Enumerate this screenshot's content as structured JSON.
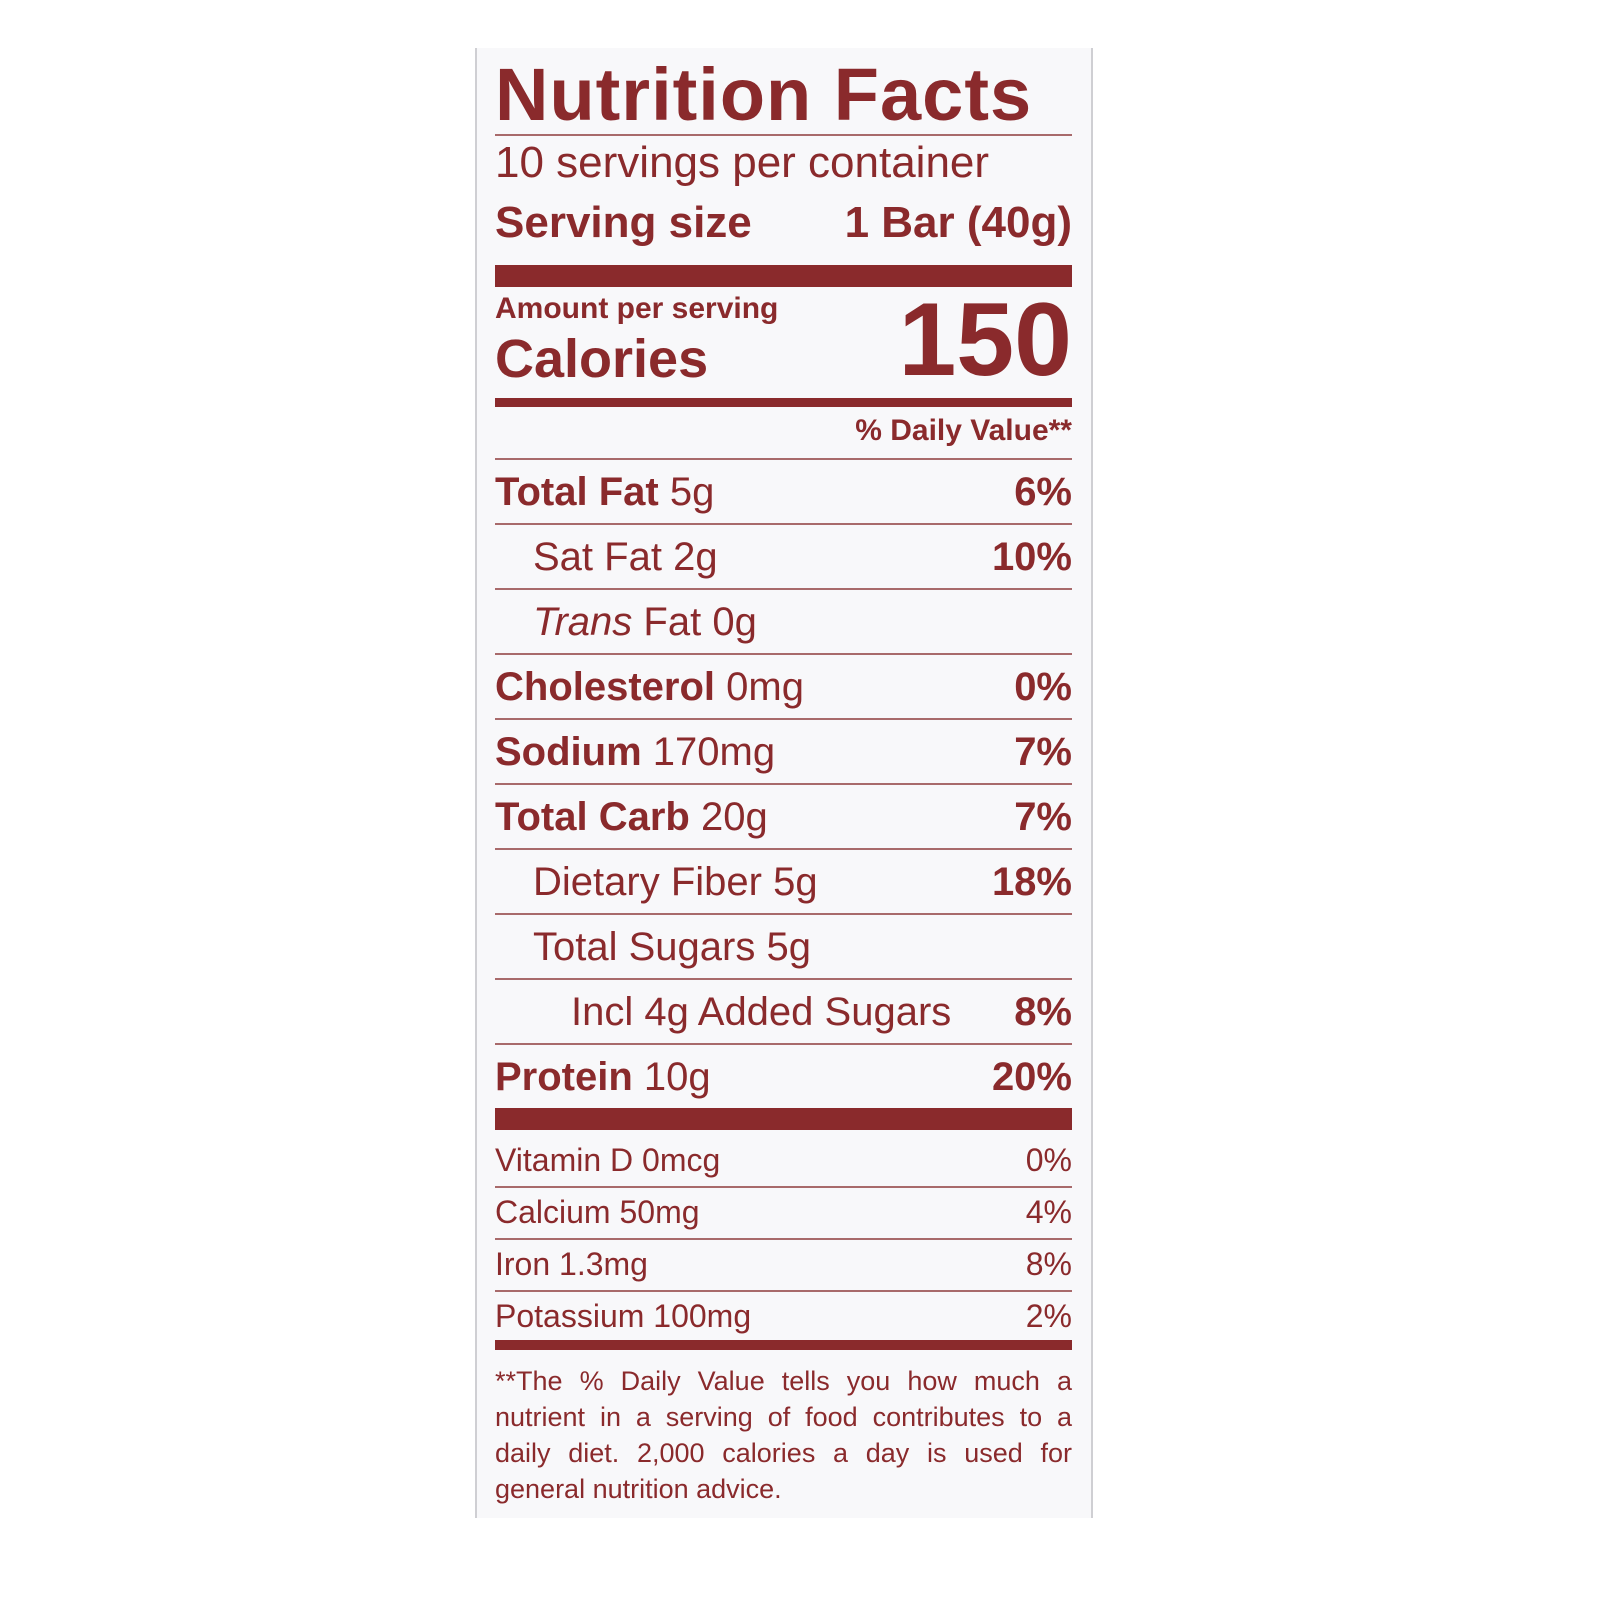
{
  "title": "Nutrition Facts",
  "servings": "10 servings per container",
  "serving_size": {
    "label": "Serving size",
    "value": "1 Bar (40g)"
  },
  "calories": {
    "amount_label": "Amount per serving",
    "label": "Calories",
    "value": "150"
  },
  "dv_header": "% Daily Value**",
  "nutrients": [
    {
      "name": "Total Fat",
      "amount": "5g",
      "dv": "6%"
    },
    {
      "name": "Sat Fat",
      "amount": "2g",
      "dv": "10%"
    },
    {
      "italic": "Trans",
      "name": "Fat",
      "amount": "0g"
    },
    {
      "name": "Cholesterol",
      "amount": "0mg",
      "dv": "0%"
    },
    {
      "name": "Sodium",
      "amount": "170mg",
      "dv": "7%"
    },
    {
      "name": "Total Carb",
      "amount": "20g",
      "dv": "7%"
    },
    {
      "name": "Dietary Fiber",
      "amount": "5g",
      "dv": "18%"
    },
    {
      "name": "Total Sugars",
      "amount": "5g"
    },
    {
      "name": "Incl 4g Added Sugars",
      "dv": "8%"
    },
    {
      "name": "Protein",
      "amount": "10g",
      "dv": "20%"
    }
  ],
  "vitamins": [
    {
      "name": "Vitamin D",
      "amount": "0mcg",
      "dv": "0%"
    },
    {
      "name": "Calcium",
      "amount": "50mg",
      "dv": "4%"
    },
    {
      "name": "Iron",
      "amount": "1.3mg",
      "dv": "8%"
    },
    {
      "name": "Potassium",
      "amount": "100mg",
      "dv": "2%"
    }
  ],
  "footnote": "**The % Daily Value tells you how much a nutrient in a serving of food contributes to a daily diet. 2,000 calories a day is used for general nutrition advice."
}
